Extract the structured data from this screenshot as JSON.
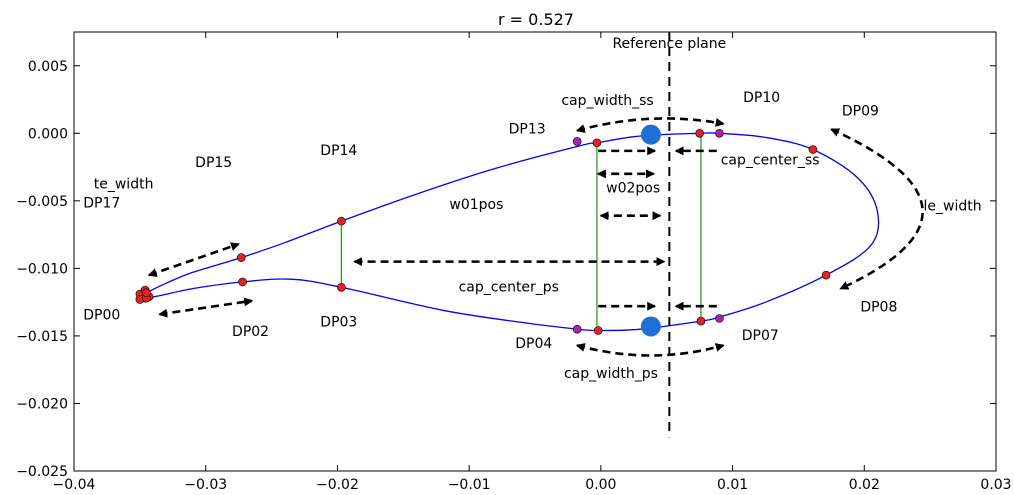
{
  "chart_data": {
    "type": "diagram",
    "title": "r = 0.527",
    "xlim": [
      -0.04,
      0.03
    ],
    "ylim": [
      -0.025,
      0.0075
    ],
    "x_ticks": [
      -0.04,
      -0.03,
      -0.02,
      -0.01,
      0.0,
      0.01,
      0.02,
      0.03
    ],
    "y_ticks": [
      0.005,
      0.0,
      -0.005,
      -0.01,
      -0.015,
      -0.02,
      -0.025
    ],
    "x_tick_labels": [
      "−0.04",
      "−0.03",
      "−0.02",
      "−0.01",
      "0.00",
      "0.01",
      "0.02",
      "0.03"
    ],
    "y_tick_labels": [
      "0.005",
      "0.000",
      "−0.005",
      "−0.010",
      "−0.015",
      "−0.020",
      "−0.025"
    ],
    "colors": {
      "profile": "#0000ff",
      "design_point": "#e82020",
      "cap_point": "#b020b0",
      "green_line": "#2aa02a",
      "cap_center": "#1f6fd6",
      "arrow": "#000000"
    },
    "profile_points": [
      [
        -0.0345,
        -0.0118
      ],
      [
        -0.033,
        -0.0111
      ],
      [
        -0.031,
        -0.0103
      ],
      [
        -0.0273,
        -0.0092
      ],
      [
        -0.024,
        -0.0081
      ],
      [
        -0.0197,
        -0.0065
      ],
      [
        -0.014,
        -0.0045
      ],
      [
        -0.008,
        -0.0026
      ],
      [
        -0.0015,
        -0.0009
      ],
      [
        -0.0003,
        -0.0007
      ],
      [
        0.003,
        -0.0002
      ],
      [
        0.0075,
        0.0
      ],
      [
        0.009,
        0.0
      ],
      [
        0.0125,
        -0.0003
      ],
      [
        0.0161,
        -0.0012
      ],
      [
        0.0195,
        -0.0033
      ],
      [
        0.021,
        -0.0058
      ],
      [
        0.0205,
        -0.0083
      ],
      [
        0.0171,
        -0.0105
      ],
      [
        0.0125,
        -0.0125
      ],
      [
        0.009,
        -0.0136
      ],
      [
        0.0076,
        -0.0139
      ],
      [
        0.003,
        -0.0145
      ],
      [
        -0.0002,
        -0.0146
      ],
      [
        -0.0018,
        -0.0145
      ],
      [
        -0.006,
        -0.014
      ],
      [
        -0.012,
        -0.0131
      ],
      [
        -0.0197,
        -0.0114
      ],
      [
        -0.0235,
        -0.0108
      ],
      [
        -0.0272,
        -0.011
      ],
      [
        -0.031,
        -0.0115
      ],
      [
        -0.034,
        -0.0121
      ],
      [
        -0.0345,
        -0.0118
      ]
    ],
    "design_points": [
      {
        "name": "DP00",
        "x": -0.0345,
        "y": -0.0122
      },
      {
        "name": "DP02",
        "x": -0.0272,
        "y": -0.011
      },
      {
        "name": "DP03",
        "x": -0.0197,
        "y": -0.0114
      },
      {
        "name": "DP04",
        "x": -0.0002,
        "y": -0.0146
      },
      {
        "name": "DP07",
        "x": 0.0076,
        "y": -0.0139
      },
      {
        "name": "DP08",
        "x": 0.0171,
        "y": -0.0105
      },
      {
        "name": "DP09",
        "x": 0.0161,
        "y": -0.0012
      },
      {
        "name": "DP10",
        "x": 0.0075,
        "y": 0.0
      },
      {
        "name": "DP13",
        "x": -0.0003,
        "y": -0.0007
      },
      {
        "name": "DP14",
        "x": -0.0197,
        "y": -0.0065
      },
      {
        "name": "DP15",
        "x": -0.0273,
        "y": -0.0092
      },
      {
        "name": "DP17",
        "x": -0.0345,
        "y": -0.0118
      }
    ],
    "te_cluster": [
      {
        "x": -0.035,
        "y": -0.0119
      },
      {
        "x": -0.0346,
        "y": -0.0116
      },
      {
        "x": -0.0346,
        "y": -0.0122
      },
      {
        "x": -0.035,
        "y": -0.0123
      },
      {
        "x": -0.0343,
        "y": -0.0121
      }
    ],
    "cap_points": [
      {
        "x": -0.0018,
        "y": -0.0006
      },
      {
        "x": 0.009,
        "y": 0.0
      },
      {
        "x": -0.0018,
        "y": -0.0145
      },
      {
        "x": 0.009,
        "y": -0.0137
      }
    ],
    "cap_centers": [
      {
        "x": 0.0038,
        "y": -0.0001
      },
      {
        "x": 0.0038,
        "y": -0.0143
      }
    ],
    "green_lines": [
      {
        "x": -0.0197,
        "y1": -0.0065,
        "y2": -0.0114
      },
      {
        "x": -0.0003,
        "y1": -0.0007,
        "y2": -0.0146
      },
      {
        "x": 0.0076,
        "y1": 0.0,
        "y2": -0.0139
      }
    ],
    "reference_plane": {
      "x": 0.0052,
      "y1": 0.0075,
      "y2": -0.0225,
      "label": "Reference plane"
    },
    "arrows": [
      {
        "type": "double",
        "x1": -0.0343,
        "y1": -0.0105,
        "x2": -0.0275,
        "y2": -0.0082
      },
      {
        "type": "double",
        "x1": -0.0335,
        "y1": -0.0134,
        "x2": -0.0265,
        "y2": -0.0124
      },
      {
        "type": "double",
        "x1": -0.0187,
        "y1": -0.0095,
        "x2": 0.0048,
        "y2": -0.0095
      },
      {
        "type": "double",
        "x1": -0.0002,
        "y1": -0.003,
        "x2": 0.004,
        "y2": -0.003
      },
      {
        "type": "double",
        "x1": 0.0,
        "y1": -0.0061,
        "x2": 0.0045,
        "y2": -0.0061
      },
      {
        "type": "single",
        "x1": -0.0002,
        "y1": -0.0013,
        "x2": 0.0041,
        "y2": -0.0013
      },
      {
        "type": "single",
        "x1": 0.0088,
        "y1": -0.0013,
        "x2": 0.0057,
        "y2": -0.0013
      },
      {
        "type": "single",
        "x1": -0.0002,
        "y1": -0.0128,
        "x2": 0.0041,
        "y2": -0.0128
      },
      {
        "type": "single",
        "x1": 0.0088,
        "y1": -0.0128,
        "x2": 0.0057,
        "y2": -0.0128
      }
    ],
    "curved_arrows": [
      {
        "name": "cap_width_ss",
        "x1": -0.0018,
        "y1": 0.0002,
        "cx": 0.0038,
        "cy": 0.0017,
        "x2": 0.0093,
        "y2": 0.0007
      },
      {
        "name": "cap_width_ps",
        "x1": -0.0018,
        "y1": -0.0157,
        "cx": 0.0038,
        "cy": -0.0172,
        "x2": 0.0093,
        "y2": -0.0157
      },
      {
        "name": "le_width",
        "x1": 0.0175,
        "y1": 0.0003,
        "cx": 0.031,
        "cy": -0.0057,
        "x2": 0.0182,
        "y2": -0.0115
      }
    ],
    "annotations": [
      {
        "text": "te_width",
        "x": -0.0385,
        "y": -0.0041,
        "anchor": "start"
      },
      {
        "text": "DP17",
        "x": -0.0393,
        "y": -0.0055,
        "anchor": "start"
      },
      {
        "text": "DP00",
        "x": -0.0393,
        "y": -0.0138,
        "anchor": "start"
      },
      {
        "text": "DP15",
        "x": -0.0308,
        "y": -0.0025,
        "anchor": "start"
      },
      {
        "text": "DP02",
        "x": -0.028,
        "y": -0.015,
        "anchor": "start"
      },
      {
        "text": "DP14",
        "x": -0.0213,
        "y": -0.0016,
        "anchor": "start"
      },
      {
        "text": "DP03",
        "x": -0.0213,
        "y": -0.0143,
        "anchor": "start"
      },
      {
        "text": "w01pos",
        "x": -0.0115,
        "y": -0.0056,
        "anchor": "start"
      },
      {
        "text": "cap_width_ss",
        "x": -0.003,
        "y": 0.0021,
        "anchor": "start"
      },
      {
        "text": "DP13",
        "x": -0.007,
        "y": 0.0,
        "anchor": "start"
      },
      {
        "text": "DP10",
        "x": 0.0108,
        "y": 0.0023,
        "anchor": "start"
      },
      {
        "text": "DP09",
        "x": 0.0183,
        "y": 0.0013,
        "anchor": "start"
      },
      {
        "text": "cap_center_ss",
        "x": 0.0091,
        "y": -0.0023,
        "anchor": "start"
      },
      {
        "text": "w02pos",
        "x": 0.0004,
        "y": -0.0044,
        "anchor": "start"
      },
      {
        "text": "le_width",
        "x": 0.0245,
        "y": -0.0057,
        "anchor": "start"
      },
      {
        "text": "cap_center_ps",
        "x": -0.0108,
        "y": -0.0117,
        "anchor": "start"
      },
      {
        "text": "DP04",
        "x": -0.0065,
        "y": -0.0159,
        "anchor": "start"
      },
      {
        "text": "DP07",
        "x": 0.0107,
        "y": -0.0153,
        "anchor": "start"
      },
      {
        "text": "DP08",
        "x": 0.0197,
        "y": -0.0132,
        "anchor": "start"
      },
      {
        "text": "cap_width_ps",
        "x": -0.0028,
        "y": -0.0181,
        "anchor": "start"
      }
    ]
  }
}
